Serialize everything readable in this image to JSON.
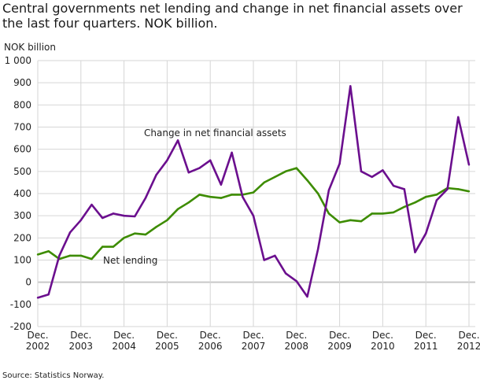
{
  "chart_data": {
    "type": "line",
    "title": "Central governments net lending and change in net financial assets over the last four quarters. NOK billion.",
    "ylabel": "NOK billion",
    "xlabel": "",
    "ylim": [
      -200,
      1000
    ],
    "yticks": [
      -200,
      -100,
      0,
      100,
      200,
      300,
      400,
      500,
      600,
      700,
      800,
      900,
      1000
    ],
    "ytick_labels": [
      "-200",
      "-100",
      "0",
      "100",
      "200",
      "300",
      "400",
      "500",
      "600",
      "700",
      "800",
      "900",
      "1 000"
    ],
    "xtick_labels": [
      [
        "Dec.",
        "2002"
      ],
      [
        "Dec.",
        "2003"
      ],
      [
        "Dec.",
        "2004"
      ],
      [
        "Dec.",
        "2005"
      ],
      [
        "Dec.",
        "2006"
      ],
      [
        "Dec.",
        "2007"
      ],
      [
        "Dec.",
        "2008"
      ],
      [
        "Dec.",
        "2009"
      ],
      [
        "Dec.",
        "2010"
      ],
      [
        "Dec.",
        "2011"
      ],
      [
        "Dec.",
        "2012"
      ]
    ],
    "x_frequency": "quarterly, Dec. 2002 – Dec. 2012",
    "grid": true,
    "series": [
      {
        "name": "Change in net financial assets",
        "color": "#6b0f8e",
        "values": [
          -70,
          -55,
          120,
          225,
          280,
          350,
          290,
          310,
          300,
          297,
          380,
          485,
          550,
          640,
          495,
          515,
          550,
          440,
          585,
          385,
          300,
          100,
          120,
          40,
          5,
          -65,
          150,
          415,
          535,
          885,
          500,
          475,
          505,
          435,
          420,
          135,
          220,
          370,
          420,
          745,
          530
        ]
      },
      {
        "name": "Net lending",
        "color": "#3d8c00",
        "values": [
          125,
          140,
          105,
          120,
          120,
          105,
          160,
          160,
          200,
          220,
          215,
          250,
          280,
          330,
          360,
          395,
          385,
          380,
          395,
          395,
          405,
          450,
          475,
          500,
          515,
          460,
          400,
          310,
          270,
          280,
          275,
          310,
          310,
          315,
          340,
          360,
          385,
          395,
          425,
          420,
          410
        ]
      }
    ],
    "source": "Source: Statistics Norway."
  }
}
